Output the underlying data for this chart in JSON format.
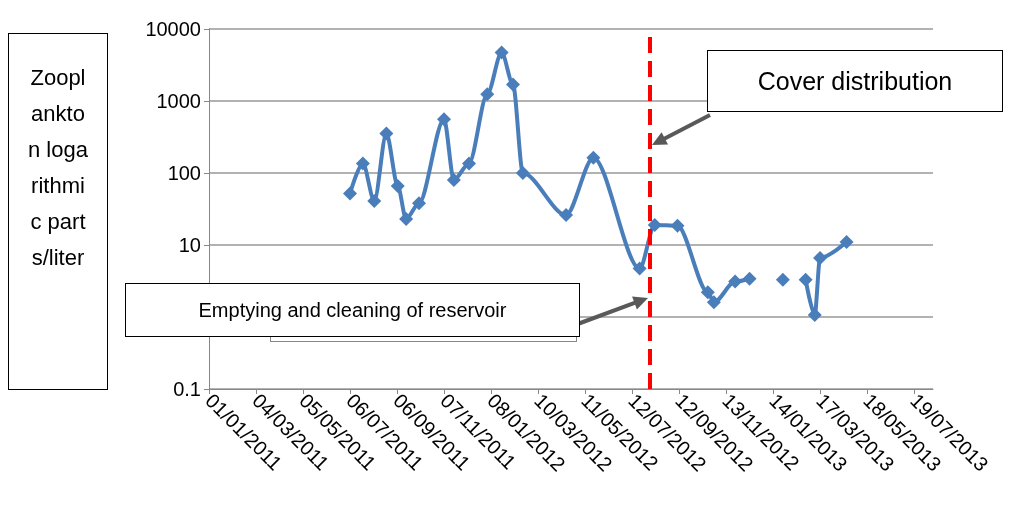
{
  "chart_data": {
    "type": "line",
    "ylabel": "Zooplankton logarithmic parts/liter",
    "x": [
      "2011-07-06",
      "2011-07-23",
      "2011-08-07",
      "2011-08-23",
      "2011-09-07",
      "2011-09-18",
      "2011-10-05",
      "2011-11-07",
      "2011-11-20",
      "2011-12-10",
      "2012-01-03",
      "2012-01-22",
      "2012-02-06",
      "2012-02-19",
      "2012-04-16",
      "2012-05-22",
      "2012-07-22",
      "2012-08-11",
      "2012-09-10",
      "2012-10-20",
      "2012-10-28",
      "2012-11-25",
      "2012-12-14",
      "2013-01-05",
      "2013-01-27",
      "2013-02-10",
      "2013-02-26",
      "2013-03-10",
      "2013-03-17",
      "2013-04-21"
    ],
    "series": [
      {
        "color": "#4a7ebb",
        "values": [
          52,
          136,
          41,
          355,
          66,
          23,
          38,
          560,
          80,
          136,
          1240,
          4700,
          1700,
          100,
          26,
          163,
          4.7,
          19,
          18.5,
          2.2,
          1.6,
          3.1,
          3.4,
          null,
          3.3,
          null,
          3.3,
          1.07,
          6.6,
          11
        ]
      }
    ],
    "log": "y",
    "xlim": [
      "2011-01-01",
      "2013-08-13"
    ],
    "ylim": [
      0.1,
      10000
    ],
    "xticks": [
      {
        "value": "2011-01-01",
        "label": "01/01/2011"
      },
      {
        "value": "2011-03-04",
        "label": "04/03/2011"
      },
      {
        "value": "2011-05-05",
        "label": "05/05/2011"
      },
      {
        "value": "2011-07-06",
        "label": "06/07/2011"
      },
      {
        "value": "2011-09-06",
        "label": "06/09/2011"
      },
      {
        "value": "2011-11-07",
        "label": "07/11/2011"
      },
      {
        "value": "2012-01-08",
        "label": "08/01/2012"
      },
      {
        "value": "2012-03-10",
        "label": "10/03/2012"
      },
      {
        "value": "2012-05-11",
        "label": "11/05/2012"
      },
      {
        "value": "2012-07-12",
        "label": "12/07/2012"
      },
      {
        "value": "2012-09-12",
        "label": "12/09/2012"
      },
      {
        "value": "2012-11-13",
        "label": "13/11/2012"
      },
      {
        "value": "2013-01-14",
        "label": "14/01/2013"
      },
      {
        "value": "2013-03-17",
        "label": "17/03/2013"
      },
      {
        "value": "2013-05-18",
        "label": "18/05/2013"
      },
      {
        "value": "2013-07-19",
        "label": "19/07/2013"
      }
    ],
    "yticks": [
      0.1,
      {
        "value": 1,
        "label": null
      },
      10,
      100,
      1000,
      10000
    ],
    "grid": "y",
    "marker": "diamond",
    "line_style": "solid",
    "ref_lines": [
      {
        "axis": "x",
        "value": "2012-08-04",
        "color": "#ff0000",
        "line_style": "dashed"
      }
    ],
    "annotations": [
      "Cover distribution",
      "Emptying and cleaning of reservoir"
    ]
  }
}
